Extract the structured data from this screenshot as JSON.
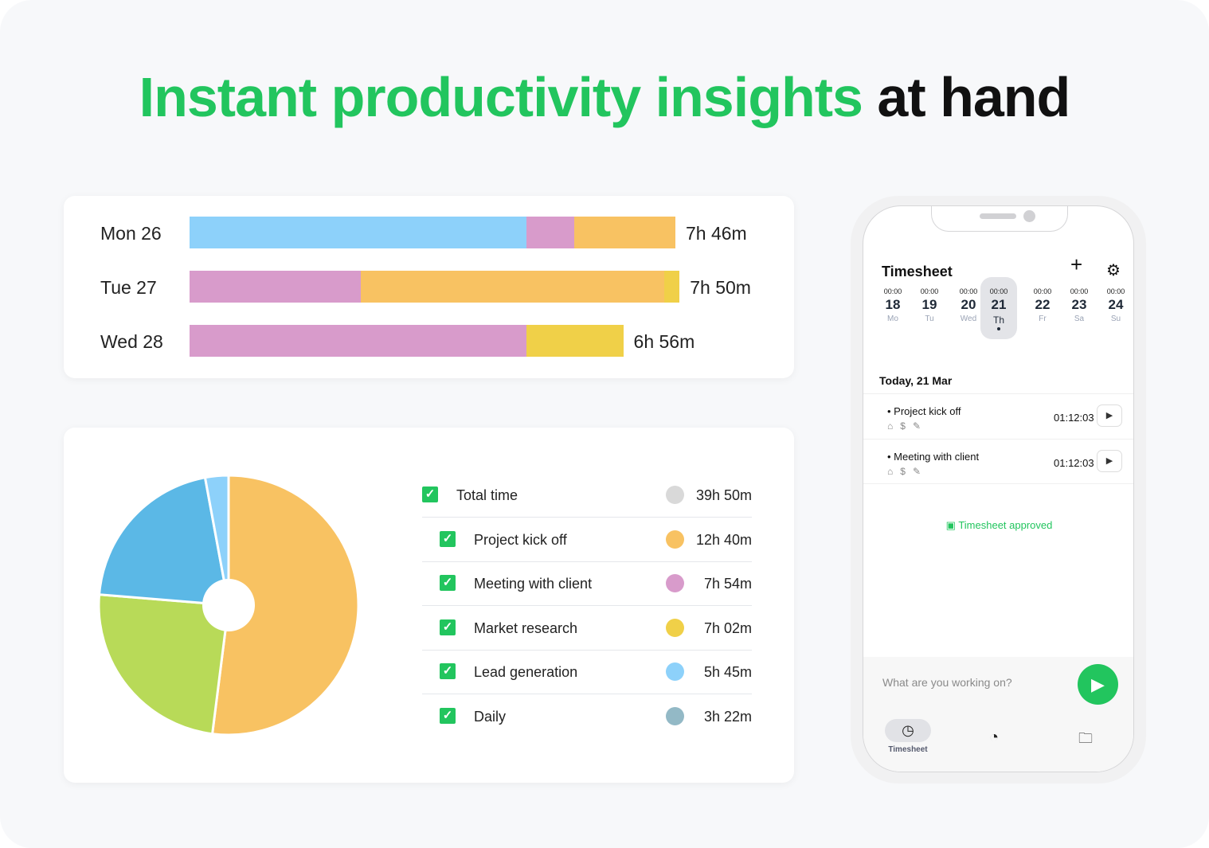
{
  "headline": {
    "green": "Instant productivity insights",
    "black": "at hand"
  },
  "colors": {
    "accent": "#22c55e",
    "lead_generation": "#8dd1fa",
    "meeting": "#d89bcb",
    "project": "#f8c262",
    "market": "#f0d048",
    "pie_blue": "#5bb8e6",
    "pie_green": "#b8da58",
    "pie_orange": "#f8c262",
    "pie_lightblue": "#8dd1fa"
  },
  "chart_data": [
    {
      "type": "bar",
      "orientation": "horizontal-stacked",
      "categories": [
        "Mon 26",
        "Tue 27",
        "Wed 28"
      ],
      "totals": [
        "7h 46m",
        "7h 50m",
        "6h 56m"
      ],
      "segments_minutes": [
        [
          {
            "color": "#8dd1fa",
            "value": 323
          },
          {
            "color": "#d89bcb",
            "value": 46
          },
          {
            "color": "#f8c262",
            "value": 97
          }
        ],
        [
          {
            "color": "#d89bcb",
            "value": 164
          },
          {
            "color": "#f8c262",
            "value": 291
          },
          {
            "color": "#f0d048",
            "value": 15
          }
        ],
        [
          {
            "color": "#d89bcb",
            "value": 323
          },
          {
            "color": "#f0d048",
            "value": 93
          }
        ]
      ]
    },
    {
      "type": "pie",
      "slices_percent": [
        {
          "color": "#f8c262",
          "value": 52
        },
        {
          "color": "#b8da58",
          "value": 24.3
        },
        {
          "color": "#5bb8e6",
          "value": 20.8
        },
        {
          "color": "#8dd1fa",
          "value": 2.9
        }
      ],
      "legend": [
        {
          "label": "Total time",
          "value": "39h 50m",
          "color": "#d9d9d9"
        },
        {
          "label": "Project kick off",
          "value": "12h 40m",
          "color": "#f8c262"
        },
        {
          "label": "Meeting with client",
          "value": "7h 54m",
          "color": "#d89bcb"
        },
        {
          "label": "Market research",
          "value": "7h 02m",
          "color": "#f0d048"
        },
        {
          "label": "Lead generation",
          "value": "5h 45m",
          "color": "#8dd1fa"
        },
        {
          "label": "Daily",
          "value": "3h 22m",
          "color": "#93b9c6"
        }
      ]
    }
  ],
  "phone": {
    "title": "Timesheet",
    "plus": "+",
    "gear": "⚙",
    "days": [
      {
        "time": "00:00",
        "num": "18",
        "wd": "Mo"
      },
      {
        "time": "00:00",
        "num": "19",
        "wd": "Tu"
      },
      {
        "time": "00:00",
        "num": "20",
        "wd": "Wed"
      },
      {
        "time": "00:00",
        "num": "21",
        "wd": "Th",
        "selected": true
      },
      {
        "time": "00:00",
        "num": "22",
        "wd": "Fr"
      },
      {
        "time": "00:00",
        "num": "23",
        "wd": "Sa"
      },
      {
        "time": "00:00",
        "num": "24",
        "wd": "Su"
      }
    ],
    "today": "Today, 21 Mar",
    "entries": [
      {
        "name": "• Project kick off",
        "time": "01:12:03"
      },
      {
        "name": "• Meeting with client",
        "time": "01:12:03"
      }
    ],
    "approved": "Timesheet approved",
    "input_placeholder": "What are you working on?",
    "nav": {
      "timesheet": "Timesheet"
    }
  }
}
